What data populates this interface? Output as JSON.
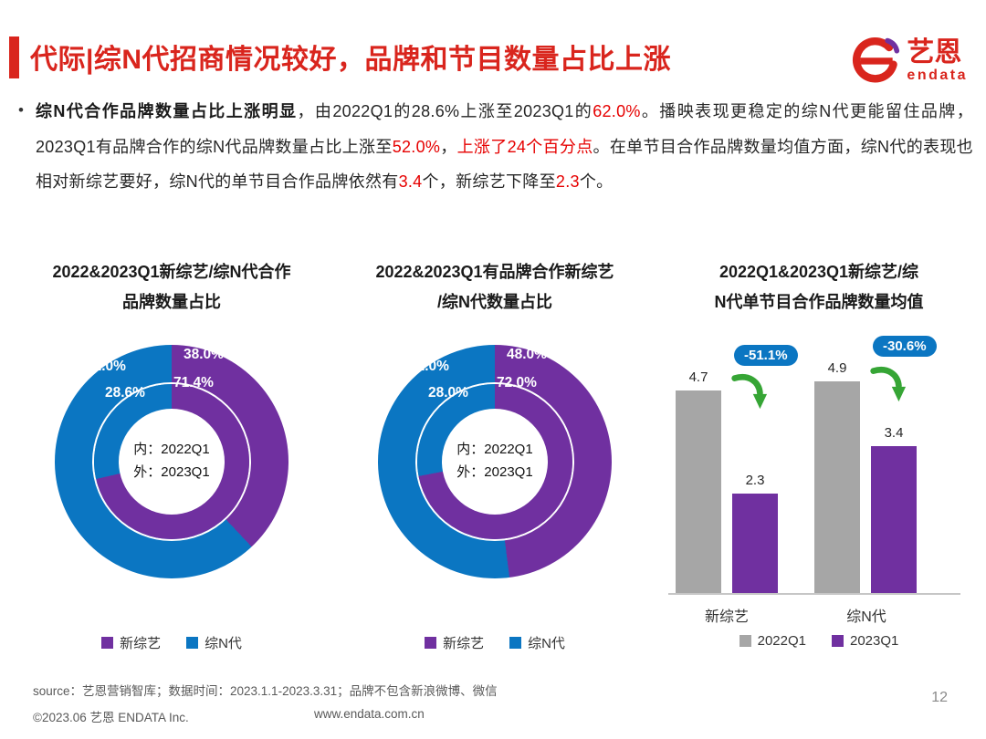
{
  "header": {
    "accent_color": "#D9251D",
    "title": "代际|综N代招商情况较好，品牌和节目数量占比上涨",
    "logo": {
      "cn": "艺恩",
      "en": "endata"
    }
  },
  "intro": {
    "bullet": "•",
    "segments": [
      {
        "text": "综N代合作品牌数量占比上涨明显",
        "style": "bold"
      },
      {
        "text": "，由2022Q1的28.6%上涨至2023Q1的",
        "style": "normal"
      },
      {
        "text": "62.0%",
        "style": "red"
      },
      {
        "text": "。播映表现更稳定的综N代更能留住品牌，2023Q1有品牌合作的综N代品牌数量占比上涨至",
        "style": "normal"
      },
      {
        "text": "52.0%",
        "style": "red"
      },
      {
        "text": "，",
        "style": "normal"
      },
      {
        "text": "上涨了24个百分点",
        "style": "red"
      },
      {
        "text": "。在单节目合作品牌数量均值方面，综N代的表现也相对新综艺要好，综N代的单节目合作品牌依然有",
        "style": "normal"
      },
      {
        "text": "3.4",
        "style": "red"
      },
      {
        "text": "个，新综艺下降至",
        "style": "normal"
      },
      {
        "text": "2.3",
        "style": "red"
      },
      {
        "text": "个。",
        "style": "normal"
      }
    ]
  },
  "panels": [
    {
      "title_line1": "2022&2023Q1新综艺/综N代合作",
      "title_line2": "品牌数量占比",
      "center_line1": "内：2022Q1",
      "center_line2": "外：2023Q1",
      "labels": {
        "outer_blue": "62.0%",
        "outer_purple": "38.0%",
        "inner_blue": "28.6%",
        "inner_purple": "71.4%"
      },
      "legend": [
        "新综艺",
        "综N代"
      ]
    },
    {
      "title_line1": "2022&2023Q1有品牌合作新综艺",
      "title_line2": "/综N代数量占比",
      "center_line1": "内：2022Q1",
      "center_line2": "外：2023Q1",
      "labels": {
        "outer_blue": "52.0%",
        "outer_purple": "48.0%",
        "inner_blue": "28.0%",
        "inner_purple": "72.0%"
      },
      "legend": [
        "新综艺",
        "综N代"
      ]
    },
    {
      "title_line1": "2022Q1&2023Q1新综艺/综",
      "title_line2": "N代单节目合作品牌数量均值",
      "values": [
        "4.7",
        "2.3",
        "4.9",
        "3.4"
      ],
      "badges": [
        "-51.1%",
        "-30.6%"
      ],
      "categories": [
        "新综艺",
        "综N代"
      ],
      "legend": [
        "2022Q1",
        "2023Q1"
      ]
    }
  ],
  "chart_data": [
    {
      "type": "pie",
      "subtype": "double_donut",
      "title": "2022&2023Q1新综艺/综N代合作品牌数量占比",
      "categories": [
        "新综艺",
        "综N代"
      ],
      "colors": [
        "#7030A0",
        "#0B76C2"
      ],
      "inner": {
        "label": "2022Q1",
        "values": [
          71.4,
          28.6
        ]
      },
      "outer": {
        "label": "2023Q1",
        "values": [
          38.0,
          62.0
        ]
      },
      "legend_position": "bottom"
    },
    {
      "type": "pie",
      "subtype": "double_donut",
      "title": "2022&2023Q1有品牌合作新综艺/综N代数量占比",
      "categories": [
        "新综艺",
        "综N代"
      ],
      "colors": [
        "#7030A0",
        "#0B76C2"
      ],
      "inner": {
        "label": "2022Q1",
        "values": [
          72.0,
          28.0
        ]
      },
      "outer": {
        "label": "2023Q1",
        "values": [
          48.0,
          52.0
        ]
      },
      "legend_position": "bottom"
    },
    {
      "type": "bar",
      "title": "2022Q1&2023Q1新综艺/综N代单节目合作品牌数量均值",
      "categories": [
        "新综艺",
        "综N代"
      ],
      "series": [
        {
          "name": "2022Q1",
          "values": [
            4.7,
            4.9
          ],
          "color": "#A6A6A6"
        },
        {
          "name": "2023Q1",
          "values": [
            2.3,
            3.4
          ],
          "color": "#7030A0"
        }
      ],
      "annotations": [
        {
          "label": "-51.1%",
          "category": "新综艺"
        },
        {
          "label": "-30.6%",
          "category": "综N代"
        }
      ],
      "ylim": [
        0,
        6
      ],
      "grid": false,
      "legend_position": "bottom"
    }
  ],
  "footer": {
    "source": "source：艺恩营销智库；数据时间：2023.1.1-2023.3.31；品牌不包含新浪微博、微信",
    "copyright": "©2023.06 艺恩 ENDATA Inc.",
    "website": "www.endata.com.cn",
    "page_number": "12"
  }
}
